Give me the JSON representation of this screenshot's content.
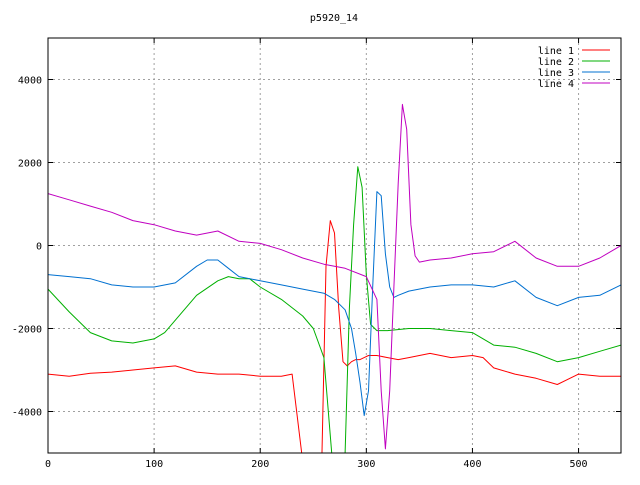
{
  "chart_data": {
    "type": "line",
    "title": "p5920_14",
    "xlabel": "",
    "ylabel": "",
    "xlim": [
      0,
      540
    ],
    "ylim": [
      -5000,
      5000
    ],
    "x_ticks": [
      0,
      100,
      200,
      300,
      400,
      500
    ],
    "y_ticks": [
      -4000,
      -2000,
      0,
      2000,
      4000
    ],
    "grid": true,
    "legend_position": "top-right",
    "series": [
      {
        "name": "line 1",
        "color": "#ff0000",
        "x": [
          0,
          20,
          40,
          60,
          80,
          100,
          120,
          140,
          160,
          180,
          200,
          220,
          230,
          240,
          246,
          252,
          258,
          262,
          266,
          270,
          274,
          278,
          282,
          286,
          290,
          294,
          298,
          302,
          310,
          320,
          330,
          340,
          360,
          380,
          400,
          410,
          420,
          440,
          460,
          480,
          500,
          520,
          540
        ],
        "y": [
          -3100,
          -3150,
          -3080,
          -3050,
          -3000,
          -2950,
          -2900,
          -3050,
          -3100,
          -3100,
          -3150,
          -3150,
          -3100,
          -5200,
          -6000,
          -6000,
          -5200,
          -500,
          600,
          300,
          -1500,
          -2800,
          -2900,
          -2800,
          -2750,
          -2750,
          -2700,
          -2650,
          -2650,
          -2700,
          -2750,
          -2700,
          -2600,
          -2700,
          -2650,
          -2700,
          -2950,
          -3100,
          -3200,
          -3350,
          -3100,
          -3150,
          -3150
        ]
      },
      {
        "name": "line 2",
        "color": "#00b000",
        "x": [
          0,
          20,
          40,
          60,
          80,
          100,
          110,
          120,
          140,
          160,
          170,
          180,
          190,
          200,
          220,
          240,
          250,
          260,
          268,
          272,
          276,
          280,
          284,
          288,
          292,
          296,
          300,
          304,
          310,
          320,
          340,
          360,
          380,
          400,
          420,
          440,
          460,
          480,
          500,
          520,
          540
        ],
        "y": [
          -1050,
          -1600,
          -2100,
          -2300,
          -2350,
          -2250,
          -2100,
          -1800,
          -1200,
          -850,
          -750,
          -800,
          -800,
          -1000,
          -1300,
          -1700,
          -2000,
          -2700,
          -5200,
          -6000,
          -6000,
          -5000,
          -1500,
          500,
          1900,
          1400,
          -700,
          -1900,
          -2050,
          -2050,
          -2000,
          -2000,
          -2050,
          -2100,
          -2400,
          -2450,
          -2600,
          -2800,
          -2700,
          -2550,
          -2400
        ]
      },
      {
        "name": "line 3",
        "color": "#0070d0",
        "x": [
          0,
          20,
          40,
          60,
          80,
          100,
          120,
          140,
          150,
          160,
          170,
          180,
          200,
          220,
          240,
          260,
          270,
          280,
          286,
          290,
          294,
          298,
          302,
          306,
          310,
          314,
          318,
          322,
          326,
          330,
          340,
          360,
          380,
          400,
          420,
          440,
          460,
          480,
          500,
          520,
          540
        ],
        "y": [
          -700,
          -750,
          -800,
          -950,
          -1000,
          -1000,
          -900,
          -500,
          -350,
          -350,
          -550,
          -750,
          -850,
          -950,
          -1050,
          -1150,
          -1300,
          -1550,
          -2000,
          -2600,
          -3300,
          -4100,
          -3500,
          -1000,
          1300,
          1200,
          -200,
          -1000,
          -1250,
          -1200,
          -1100,
          -1000,
          -950,
          -950,
          -1000,
          -850,
          -1250,
          -1450,
          -1250,
          -1200,
          -950
        ]
      },
      {
        "name": "line 4",
        "color": "#c000c0",
        "x": [
          0,
          20,
          40,
          60,
          80,
          100,
          120,
          140,
          160,
          180,
          200,
          220,
          240,
          260,
          280,
          300,
          310,
          314,
          318,
          322,
          326,
          330,
          334,
          338,
          342,
          346,
          350,
          360,
          380,
          400,
          420,
          440,
          460,
          480,
          500,
          520,
          540
        ],
        "y": [
          1250,
          1100,
          950,
          800,
          600,
          500,
          350,
          250,
          350,
          100,
          50,
          -100,
          -300,
          -450,
          -550,
          -750,
          -1300,
          -3500,
          -4900,
          -3500,
          -1000,
          1500,
          3400,
          2800,
          500,
          -250,
          -400,
          -350,
          -300,
          -200,
          -150,
          100,
          -300,
          -500,
          -500,
          -300,
          0
        ]
      }
    ]
  }
}
